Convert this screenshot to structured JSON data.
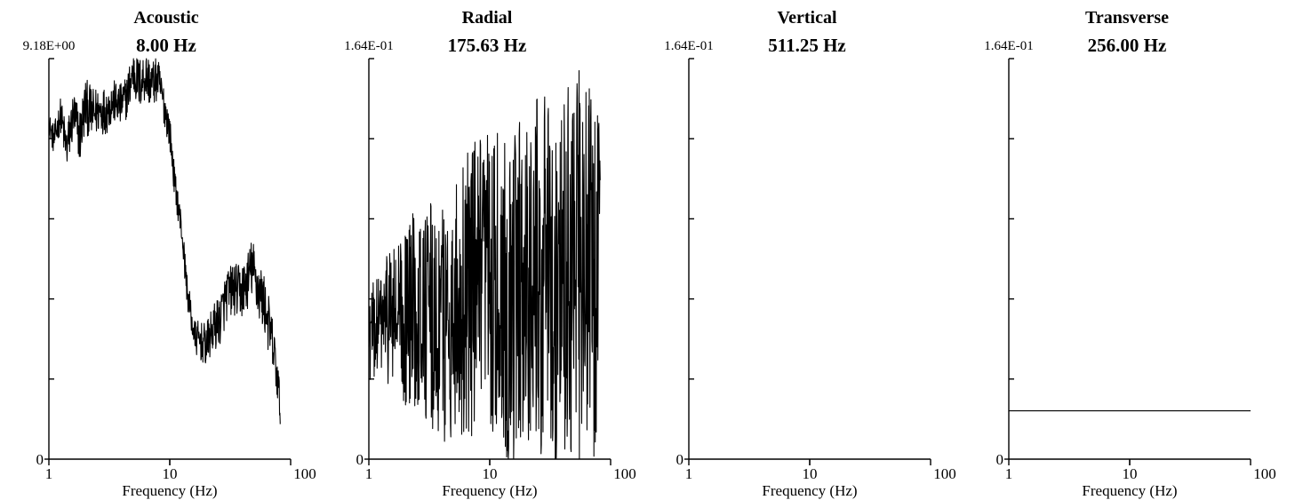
{
  "chart_data": [
    {
      "type": "line",
      "title": "Acoustic",
      "peak_label": "8.00 Hz",
      "y_max_label": "9.18E+00",
      "y_min_label": "0",
      "xlabel": "Frequency (Hz)",
      "x_scale": "log",
      "xlim": [
        1,
        100
      ],
      "x_ticks": [
        "1",
        "10",
        "100"
      ],
      "ylim": [
        0,
        9.18
      ],
      "y_ticks_count": 5,
      "series": [
        {
          "style": "noisy",
          "x": [
            1,
            1.1,
            1.25,
            1.4,
            1.6,
            1.8,
            2,
            2.3,
            2.6,
            3,
            3.4,
            3.9,
            4.4,
            5,
            5.6,
            6.3,
            7,
            8,
            9,
            10,
            11,
            12.5,
            14,
            16,
            18,
            20,
            23,
            26,
            30,
            34,
            38,
            43,
            48,
            54,
            60,
            68,
            75,
            82
          ],
          "y": [
            7.7,
            7.3,
            7.9,
            7.1,
            7.9,
            7.4,
            8.1,
            7.9,
            8.0,
            8.0,
            8.2,
            8.1,
            8.3,
            8.9,
            8.6,
            8.8,
            8.6,
            8.7,
            8.1,
            7.5,
            6.3,
            5.3,
            3.8,
            2.8,
            2.7,
            2.6,
            3.0,
            3.2,
            3.8,
            3.9,
            3.8,
            4.0,
            4.4,
            3.9,
            3.6,
            2.9,
            2.2,
            1.2
          ],
          "amp": [
            0.25,
            0.35,
            0.4,
            0.55,
            0.6,
            0.65,
            0.65,
            0.6,
            0.55,
            0.55,
            0.5,
            0.5,
            0.5,
            0.6,
            0.6,
            0.6,
            0.55,
            0.5,
            0.45,
            0.4,
            0.35,
            0.35,
            0.35,
            0.4,
            0.45,
            0.5,
            0.55,
            0.6,
            0.6,
            0.6,
            0.65,
            0.65,
            0.7,
            0.7,
            0.7,
            0.65,
            0.6,
            0.45
          ]
        }
      ]
    },
    {
      "type": "line",
      "title": "Radial",
      "peak_label": "175.63 Hz",
      "y_max_label": "1.64E-01",
      "y_min_label": "0",
      "xlabel": "Frequency (Hz)",
      "x_scale": "log",
      "xlim": [
        1,
        100
      ],
      "x_ticks": [
        "1",
        "10",
        "100"
      ],
      "ylim": [
        0,
        0.164
      ],
      "y_ticks_count": 5,
      "series": [
        {
          "style": "noisy",
          "x": [
            1,
            1.2,
            1.5,
            1.8,
            2.2,
            2.6,
            3,
            3.5,
            4,
            5,
            6,
            7,
            8,
            10,
            12,
            15,
            18,
            22,
            26,
            30,
            35,
            40,
            45,
            50,
            55,
            60,
            65,
            70,
            75,
            82
          ],
          "y": [
            0.05,
            0.055,
            0.06,
            0.055,
            0.06,
            0.065,
            0.06,
            0.055,
            0.055,
            0.06,
            0.065,
            0.07,
            0.065,
            0.07,
            0.07,
            0.065,
            0.07,
            0.075,
            0.075,
            0.075,
            0.07,
            0.075,
            0.08,
            0.075,
            0.08,
            0.075,
            0.075,
            0.08,
            0.075,
            0.07
          ],
          "amp": [
            0.02,
            0.02,
            0.03,
            0.035,
            0.04,
            0.045,
            0.045,
            0.05,
            0.05,
            0.055,
            0.055,
            0.06,
            0.065,
            0.065,
            0.065,
            0.07,
            0.07,
            0.07,
            0.075,
            0.075,
            0.075,
            0.075,
            0.08,
            0.08,
            0.08,
            0.08,
            0.08,
            0.08,
            0.08,
            0.08
          ]
        }
      ]
    },
    {
      "type": "line",
      "title": "Vertical",
      "peak_label": "511.25 Hz",
      "y_max_label": "1.64E-01",
      "y_min_label": "0",
      "xlabel": "Frequency (Hz)",
      "x_scale": "log",
      "xlim": [
        1,
        100
      ],
      "x_ticks": [
        "1",
        "10",
        "100"
      ],
      "ylim": [
        0,
        0.164
      ],
      "y_ticks_count": 5,
      "series": []
    },
    {
      "type": "line",
      "title": "Transverse",
      "peak_label": "256.00 Hz",
      "y_max_label": "1.64E-01",
      "y_min_label": "0",
      "xlabel": "Frequency (Hz)",
      "x_scale": "log",
      "xlim": [
        1,
        100
      ],
      "x_ticks": [
        "1",
        "10",
        "100"
      ],
      "ylim": [
        0,
        0.164
      ],
      "y_ticks_count": 5,
      "series": [
        {
          "style": "flat",
          "x": [
            1,
            100
          ],
          "y": [
            0.0198,
            0.0198
          ]
        }
      ]
    }
  ]
}
